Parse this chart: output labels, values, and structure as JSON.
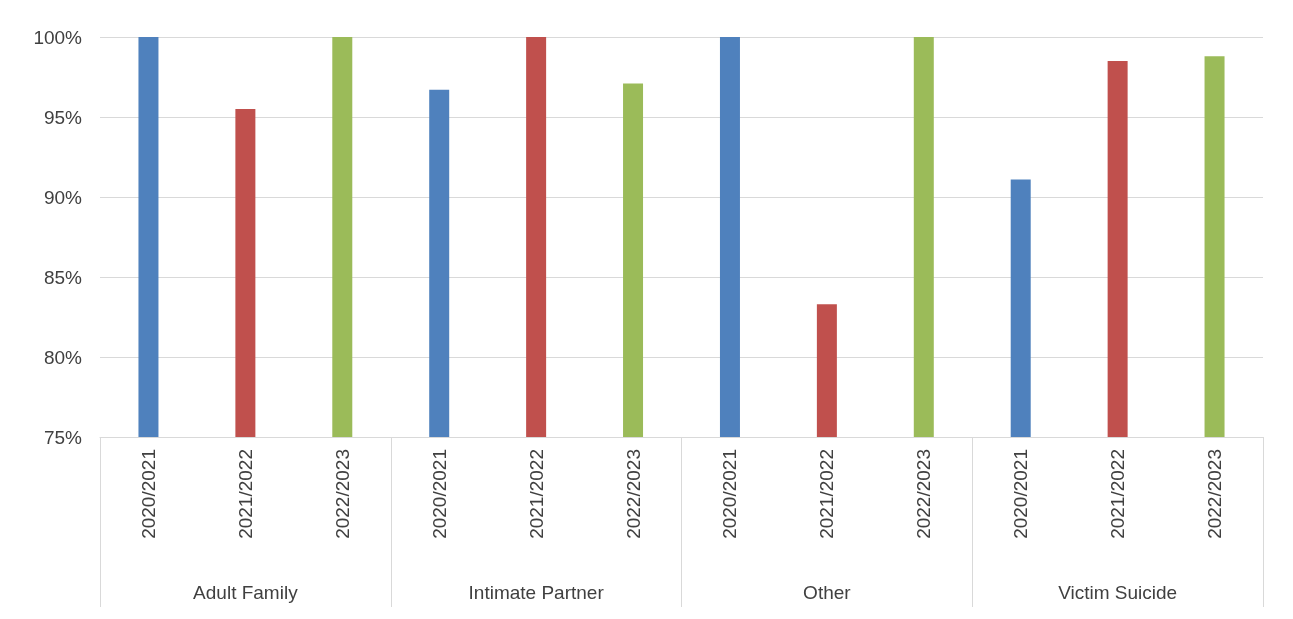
{
  "chart_data": {
    "type": "bar",
    "categories": [
      "2020/2021",
      "2021/2022",
      "2022/2023",
      "2020/2021",
      "2021/2022",
      "2022/2023",
      "2020/2021",
      "2021/2022",
      "2022/2023",
      "2020/2021",
      "2021/2022",
      "2022/2023"
    ],
    "values": [
      100,
      95.5,
      100,
      96.7,
      100,
      97.1,
      100,
      83.3,
      100,
      91.1,
      98.5,
      98.8
    ],
    "colors": [
      "#4f81bd",
      "#c0504d",
      "#9bbb59",
      "#4f81bd",
      "#c0504d",
      "#9bbb59",
      "#4f81bd",
      "#c0504d",
      "#9bbb59",
      "#4f81bd",
      "#c0504d",
      "#9bbb59"
    ],
    "annotations": [
      "Adult Family",
      "Intimate Partner",
      "Other",
      "Victim Suicide"
    ],
    "ylim": [
      75,
      100
    ],
    "yticks": [
      {
        "value": 75,
        "label": "75%"
      },
      {
        "value": 80,
        "label": "80%"
      },
      {
        "value": 85,
        "label": "85%"
      },
      {
        "value": 90,
        "label": "90%"
      },
      {
        "value": 95,
        "label": "95%"
      },
      {
        "value": 100,
        "label": "100%"
      }
    ],
    "grid": "y"
  }
}
